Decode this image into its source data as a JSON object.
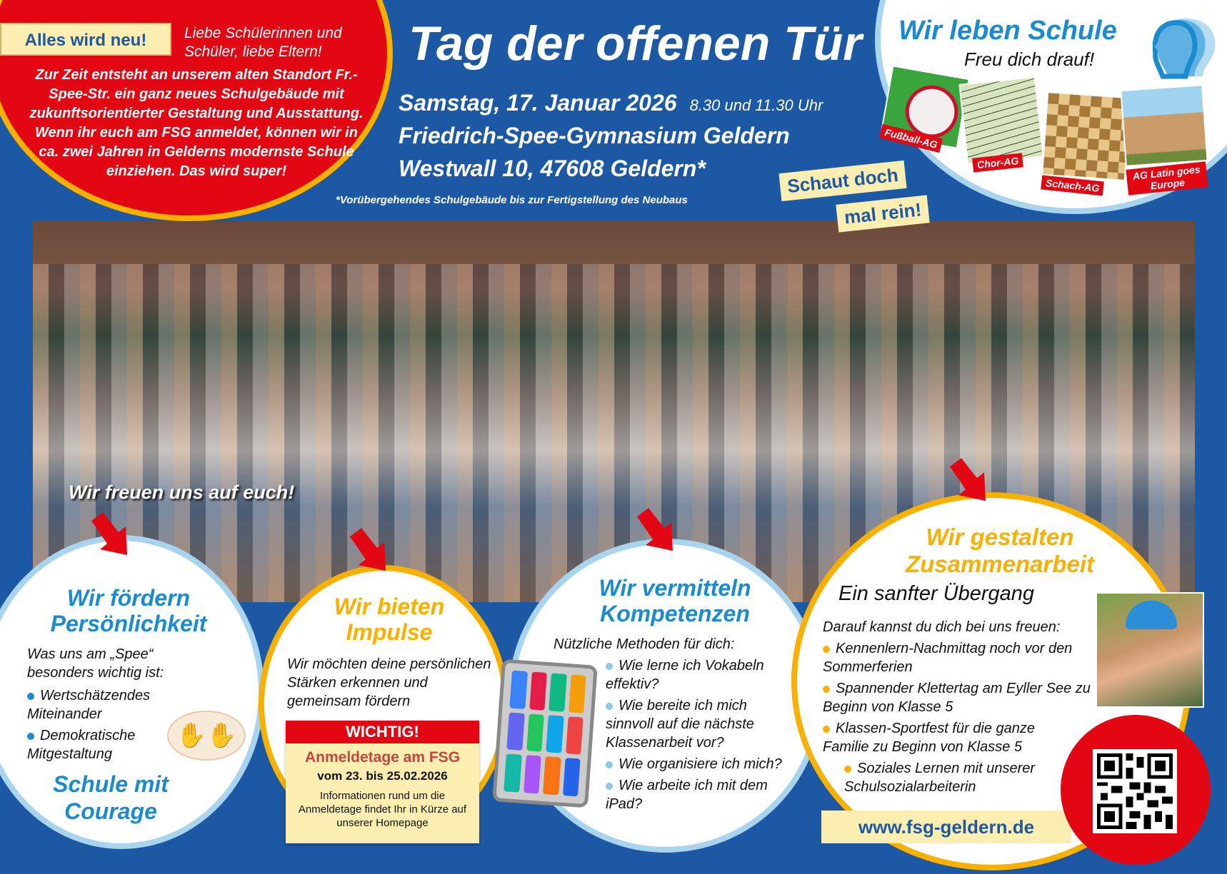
{
  "colors": {
    "background": "#1d58a4",
    "red": "#e30613",
    "yellow": "#f9b000",
    "light_blue": "#a8d4f0",
    "title_blue": "#1b8bd0",
    "cream": "#fbeeb0"
  },
  "intro": {
    "badge": "Alles wird neu!",
    "greeting": "Liebe Schülerinnen und Schüler, liebe Eltern!",
    "text": "Zur Zeit entsteht an unserem alten Standort Fr.-Spee-Str. ein ganz neues Schulgebäude mit zukunftsorientierter Gestaltung und Ausstattung. Wenn ihr euch am FSG anmeldet, können wir in ca. zwei Jahren in Gelderns modernste Schule einziehen. Das wird super!"
  },
  "header": {
    "title": "Tag der offenen Tür",
    "date": "Samstag, 17. Januar 2026",
    "time": "8.30 und 11.30 Uhr",
    "school": "Friedrich-Spee-Gymnasium Geldern",
    "address": "Westwall 10, 47608 Geldern*",
    "footnote": "*Vorübergehendes Schulgebäude bis zur Fertigstellung des Neubaus",
    "callout_1": "Schaut doch",
    "callout_2": "mal rein!"
  },
  "school_life": {
    "title": "Wir leben Schule",
    "subtitle": "Freu dich drauf!",
    "logo_icon": "head-profile-logo",
    "ags": [
      {
        "label": "Fußball-AG"
      },
      {
        "label": "Chor-AG"
      },
      {
        "label": "Schach-AG"
      },
      {
        "label": "AG Latin goes Europe"
      }
    ]
  },
  "photo": {
    "caption": "Wir freuen uns auf euch!"
  },
  "personality": {
    "title_1": "Wir fördern",
    "title_2": "Persönlichkeit",
    "intro": "Was uns am „Spee“ besonders wichtig ist:",
    "items": [
      "Wertschätzendes Miteinander",
      "Demokratische Mitgestaltung"
    ],
    "motto_1": "Schule mit",
    "motto_2": "Courage"
  },
  "impulse": {
    "title_1": "Wir bieten",
    "title_2": "Impulse",
    "text": "Wir möchten deine persönlichen Stärken erkennen und gemeinsam fördern"
  },
  "important": {
    "header": "WICHTIG!",
    "title": "Anmeldetage am FSG",
    "dates": "vom 23. bis 25.02.2026",
    "info": "Informationen rund um die Anmeldetage findet Ihr in Kürze auf unserer Homepage"
  },
  "competence": {
    "title_1": "Wir vermitteln",
    "title_2": "Kompetenzen",
    "intro": "Nützliche Methoden für dich:",
    "items": [
      "Wie lerne ich Vokabeln effektiv?",
      "Wie bereite ich mich sinnvoll auf die nächste Klassenarbeit vor?",
      "Wie organisiere ich mich?",
      "Wie arbeite ich mit dem iPad?"
    ]
  },
  "cooperation": {
    "title_1": "Wir gestalten",
    "title_2": "Zusammenarbeit",
    "subtitle": "Ein sanfter Übergang",
    "intro": "Darauf kannst du dich bei uns freuen:",
    "items": [
      "Kennenlern-Nachmittag noch vor den Sommerferien",
      "Spannender Klettertag am Eyller See zu Beginn von Klasse 5",
      "Klassen-Sportfest für die ganze Familie zu Beginn von Klasse 5",
      "Soziales Lernen mit unserer Schulsozialarbeiterin"
    ]
  },
  "website": "www.fsg-geldern.de"
}
